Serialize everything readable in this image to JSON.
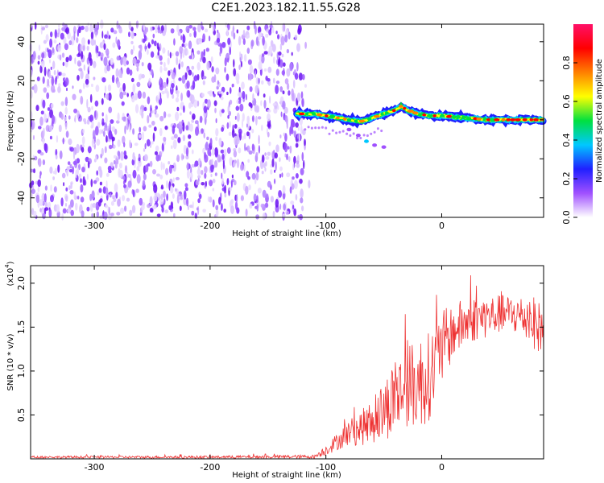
{
  "title": "C2E1.2023.182.11.55.G28",
  "chart_data": [
    {
      "type": "heatmap",
      "xlabel": "Height of straight line (km)",
      "ylabel": "Frequency (Hz)",
      "xlim": [
        -355,
        88
      ],
      "ylim": [
        -50,
        49
      ],
      "x_ticks": [
        -300,
        -200,
        -100,
        0
      ],
      "y_ticks": [
        -40,
        -20,
        0,
        20,
        40
      ],
      "noise_region": {
        "x_range": [
          -355,
          -118
        ],
        "y_range": [
          -50,
          49
        ]
      },
      "signal_ridge": {
        "x": [
          -125,
          -110,
          -100,
          -90,
          -80,
          -70,
          -60,
          -50,
          -40,
          -35,
          -30,
          -20,
          -10,
          0,
          20,
          40,
          60,
          88
        ],
        "y": [
          3,
          3,
          2,
          1,
          0,
          -1,
          1,
          3,
          5,
          7,
          5,
          3,
          2,
          2,
          1,
          0,
          0,
          0
        ]
      },
      "secondary_trace": {
        "x": [
          -80,
          -72,
          -65,
          -58,
          -50
        ],
        "y": [
          -5,
          -8,
          -11,
          -13,
          -14
        ]
      },
      "colorbar": {
        "label": "Normalized spectral amplitude",
        "range": [
          0.0,
          1.0
        ],
        "ticks": [
          {
            "value": 0.0,
            "label": "0.0"
          },
          {
            "value": 0.2,
            "label": "0.2"
          },
          {
            "value": 0.4,
            "label": "0.4"
          },
          {
            "value": 0.6,
            "label": "0.6"
          },
          {
            "value": 0.8,
            "label": "0.8"
          }
        ],
        "colors": [
          "#ffffff",
          "#a050ff",
          "#2020ff",
          "#00c8ff",
          "#00e040",
          "#ffff00",
          "#ff8000",
          "#ff0000",
          "#ff1068"
        ]
      }
    },
    {
      "type": "line",
      "xlabel": "Height of straight line (km)",
      "ylabel": "SNR (10 * v/v)",
      "scale_label": "(x10",
      "scale_exponent": "4",
      "scale_close": ")",
      "xlim": [
        -355,
        88
      ],
      "ylim": [
        0,
        2.2
      ],
      "x_ticks": [
        -300,
        -200,
        -100,
        0
      ],
      "y_ticks": [
        0.5,
        1.0,
        1.5,
        2.0
      ],
      "y_tick_labels": [
        "0.5",
        "1.0",
        "1.5",
        "2.0"
      ],
      "color": "#ee3333",
      "envelope": {
        "x": [
          -355,
          -200,
          -110,
          -100,
          -90,
          -80,
          -70,
          -60,
          -50,
          -40,
          -30,
          -20,
          -10,
          0,
          10,
          20,
          30,
          40,
          50,
          60,
          70,
          80,
          88
        ],
        "y_mid": [
          0.02,
          0.02,
          0.025,
          0.1,
          0.2,
          0.3,
          0.35,
          0.42,
          0.55,
          0.72,
          0.82,
          0.86,
          0.95,
          1.25,
          1.45,
          1.55,
          1.6,
          1.62,
          1.65,
          1.65,
          1.62,
          1.55,
          1.45
        ],
        "y_amp": [
          0.012,
          0.015,
          0.02,
          0.06,
          0.1,
          0.15,
          0.2,
          0.25,
          0.35,
          0.45,
          0.45,
          0.55,
          0.5,
          0.45,
          0.3,
          0.3,
          0.25,
          0.25,
          0.22,
          0.22,
          0.25,
          0.3,
          0.3
        ]
      }
    }
  ]
}
